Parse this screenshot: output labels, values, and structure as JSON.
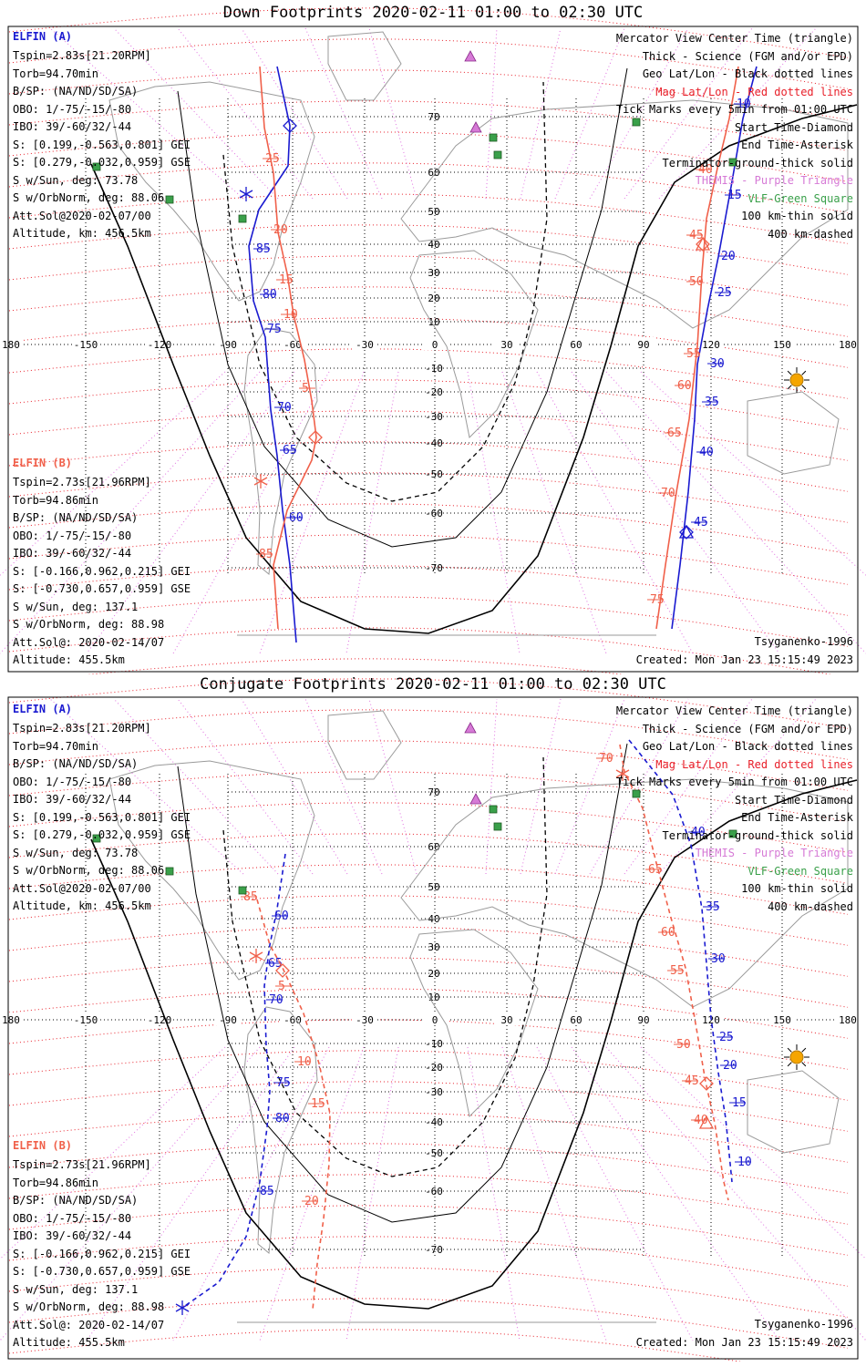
{
  "panels": [
    {
      "title": "Down Footprints 2020-02-11 01:00 to 02:30 UTC",
      "elfin_a_label": "ELFIN (A)",
      "elfin_a_info": [
        "Tspin=2.83s[21.20RPM]",
        "Torb=94.70min",
        "B/SP: (NA/ND/SD/SA)",
        "OBO: 1/-75/-15/-80",
        "IBO: 39/-60/32/-44",
        "S: [0.199,-0.563,0.801] GEI",
        "S: [0.279,-0.032,0.959] GSE",
        "S w/Sun, deg: 73.78",
        "S w/OrbNorm, deg: 88.06",
        "Att.Sol@2020-02-07/00",
        "Altitude, km: 456.5km"
      ],
      "elfin_b_label": "ELFIN (B)",
      "elfin_b_info": [
        "Tspin=2.73s[21.96RPM]",
        "Torb=94.86min",
        "B/SP: (NA/ND/SD/SA)",
        "OBO: 1/-75/-15/-80",
        "IBO: 39/-60/32/-44",
        "S: [-0.166,0.962,0.215] GEI",
        "S: [-0.730,0.657,0.959] GSE",
        "S w/Sun, deg: 137.1",
        "S w/OrbNorm, deg: 88.98",
        "Att.Sol@: 2020-02-14/07",
        "Altitude: 455.5km"
      ],
      "legend": [
        {
          "text": "Mercator View Center Time (triangle)",
          "color": "#000000"
        },
        {
          "text": "Thick - Science (FGM and/or EPD)",
          "color": "#000000"
        },
        {
          "text": "Geo Lat/Lon - Black dotted lines",
          "color": "#000000"
        },
        {
          "text": "Mag Lat/Lon - Red dotted lines",
          "color": "#e8202a"
        },
        {
          "text": "Tick Marks every 5min from 01:00 UTC",
          "color": "#000000"
        },
        {
          "text": "Start Time-Diamond",
          "color": "#000000"
        },
        {
          "text": "End Time-Asterisk",
          "color": "#000000"
        },
        {
          "text": "Terminator-ground-thick solid",
          "color": "#000000"
        },
        {
          "text": "THEMIS - Purple Triangle",
          "color": "#d67ad6"
        },
        {
          "text": "VLF-Green Square",
          "color": "#3aa04a"
        },
        {
          "text": "100 km-thin solid",
          "color": "#000000"
        },
        {
          "text": "400 km-dashed",
          "color": "#000000"
        }
      ],
      "model": "Tsyganenko-1996",
      "created": "Created: Mon Jan 23 15:15:49 2023",
      "lon_labels": [
        "180",
        "-150",
        "-120",
        "-90",
        "-60",
        "-30",
        "0",
        "30",
        "60",
        "90",
        "120",
        "150",
        "180"
      ],
      "lat_labels": [
        "70",
        "60",
        "50",
        "40",
        "30",
        "20",
        "10",
        "-10",
        "-20",
        "-30",
        "-40",
        "-50",
        "-60",
        "-70"
      ],
      "track_a_west_ticks": [
        "85",
        "80",
        "75",
        "70",
        "65",
        "60"
      ],
      "track_b_west_ticks": [
        "25",
        "20",
        "15",
        "10",
        "5",
        "85"
      ],
      "track_a_east_ticks": [
        "10",
        "15",
        "20",
        "25",
        "30",
        "35",
        "40",
        "45"
      ],
      "track_b_east_ticks": [
        "40",
        "45",
        "50",
        "55",
        "60",
        "65",
        "70",
        "75"
      ]
    },
    {
      "title": "Conjugate Footprints 2020-02-11 01:00 to 02:30 UTC",
      "elfin_a_label": "ELFIN (A)",
      "elfin_a_info": [
        "Tspin=2.83s[21.20RPM]",
        "Torb=94.70min",
        "B/SP: (NA/ND/SD/SA)",
        "OBO: 1/-75/-15/-80",
        "IBO: 39/-60/32/-44",
        "S: [0.199,-0.563,0.801] GEI",
        "S: [0.279,-0.032,0.959] GSE",
        "S w/Sun, deg: 73.78",
        "S w/OrbNorm, deg: 88.06",
        "Att.Sol@2020-02-07/00",
        "Altitude, km: 456.5km"
      ],
      "elfin_b_label": "ELFIN (B)",
      "elfin_b_info": [
        "Tspin=2.73s[21.96RPM]",
        "Torb=94.86min",
        "B/SP: (NA/ND/SD/SA)",
        "OBO: 1/-75/-15/-80",
        "IBO: 39/-60/32/-44",
        "S: [-0.166,0.962,0.215] GEI",
        "S: [-0.730,0.657,0.959] GSE",
        "S w/Sun, deg: 137.1",
        "S w/OrbNorm, deg: 88.98",
        "Att.Sol@: 2020-02-14/07",
        "Altitude: 455.5km"
      ],
      "legend": [
        {
          "text": "Mercator View Center Time (triangle)",
          "color": "#000000"
        },
        {
          "text": "Thick - Science (FGM and/or EPD)",
          "color": "#000000"
        },
        {
          "text": "Geo Lat/Lon - Black dotted lines",
          "color": "#000000"
        },
        {
          "text": "Mag Lat/Lon - Red dotted lines",
          "color": "#e8202a"
        },
        {
          "text": "Tick Marks every 5min from 01:00 UTC",
          "color": "#000000"
        },
        {
          "text": "Start Time-Diamond",
          "color": "#000000"
        },
        {
          "text": "End Time-Asterisk",
          "color": "#000000"
        },
        {
          "text": "Terminator-ground-thick solid",
          "color": "#000000"
        },
        {
          "text": "THEMIS - Purple Triangle",
          "color": "#d67ad6"
        },
        {
          "text": "VLF-Green Square",
          "color": "#3aa04a"
        },
        {
          "text": "100 km-thin solid",
          "color": "#000000"
        },
        {
          "text": "400 km-dashed",
          "color": "#000000"
        }
      ],
      "model": "Tsyganenko-1996",
      "created": "Created: Mon Jan 23 15:15:49 2023",
      "lon_labels": [
        "180",
        "-150",
        "-120",
        "-90",
        "-60",
        "-30",
        "0",
        "30",
        "60",
        "90",
        "120",
        "150",
        "180"
      ],
      "lat_labels": [
        "70",
        "60",
        "50",
        "40",
        "30",
        "20",
        "10",
        "-10",
        "-20",
        "-30",
        "-40",
        "-50",
        "-60",
        "-70"
      ],
      "track_a_west_ticks": [
        "60",
        "65",
        "70",
        "75",
        "80",
        "85"
      ],
      "track_b_west_ticks": [
        "85",
        "5",
        "10",
        "15",
        "20"
      ],
      "track_a_east_ticks": [
        "40",
        "35",
        "30",
        "25",
        "20",
        "15",
        "10"
      ],
      "track_b_east_ticks": [
        "70",
        "65",
        "60",
        "55",
        "50",
        "45",
        "40"
      ]
    }
  ],
  "colors": {
    "elfin_a": "#1a1ad0",
    "elfin_b": "#f0604a",
    "mag_grid": "#e8202a",
    "geo_grid": "#000000",
    "themis": "#d67ad6",
    "vlf": "#3aa04a",
    "sun": "#f5a500",
    "coast": "#9a9a9a",
    "purple_grid": "#e070e0"
  }
}
